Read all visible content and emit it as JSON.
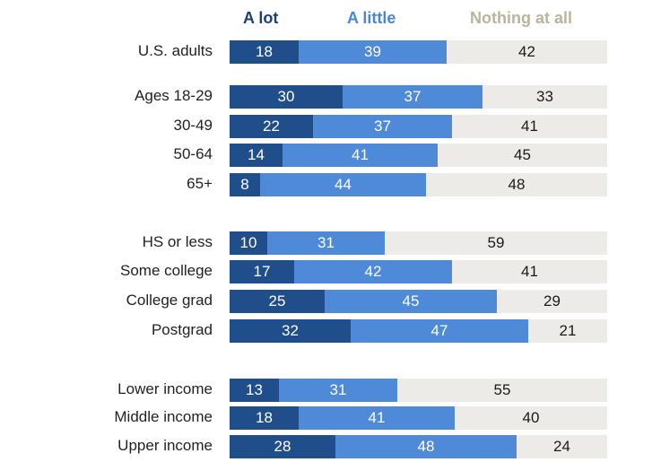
{
  "chart_data": {
    "type": "bar",
    "orientation": "horizontal",
    "stacked": true,
    "title": "",
    "xlabel": "",
    "ylabel": "",
    "xlim": [
      0,
      100
    ],
    "grid": false,
    "legend_position": "top",
    "series": [
      {
        "name": "A lot",
        "color": "#1f4e8a",
        "label_color": "#1f3f6e"
      },
      {
        "name": "A little",
        "color": "#4f8ad8",
        "label_color": "#4a86d4"
      },
      {
        "name": "Nothing at all",
        "color": "#ecebe7",
        "label_color": "#b7b59c"
      }
    ],
    "groups": [
      {
        "rows": [
          {
            "label": "U.S. adults",
            "values": [
              18,
              39,
              42
            ]
          }
        ]
      },
      {
        "rows": [
          {
            "label": "Ages 18-29",
            "values": [
              30,
              37,
              33
            ]
          },
          {
            "label": "30-49",
            "values": [
              22,
              37,
              41
            ]
          },
          {
            "label": "50-64",
            "values": [
              14,
              41,
              45
            ]
          },
          {
            "label": "65+",
            "values": [
              8,
              44,
              48
            ]
          }
        ]
      },
      {
        "rows": [
          {
            "label": "HS or less",
            "values": [
              10,
              31,
              59
            ]
          },
          {
            "label": "Some college",
            "values": [
              17,
              42,
              41
            ]
          },
          {
            "label": "College grad",
            "values": [
              25,
              45,
              29
            ]
          },
          {
            "label": "Postgrad",
            "values": [
              32,
              47,
              21
            ]
          }
        ]
      },
      {
        "rows": [
          {
            "label": "Lower income",
            "values": [
              13,
              31,
              55
            ]
          },
          {
            "label": "Middle income",
            "values": [
              18,
              41,
              40
            ]
          },
          {
            "label": "Upper income",
            "values": [
              28,
              48,
              24
            ]
          }
        ]
      }
    ]
  }
}
